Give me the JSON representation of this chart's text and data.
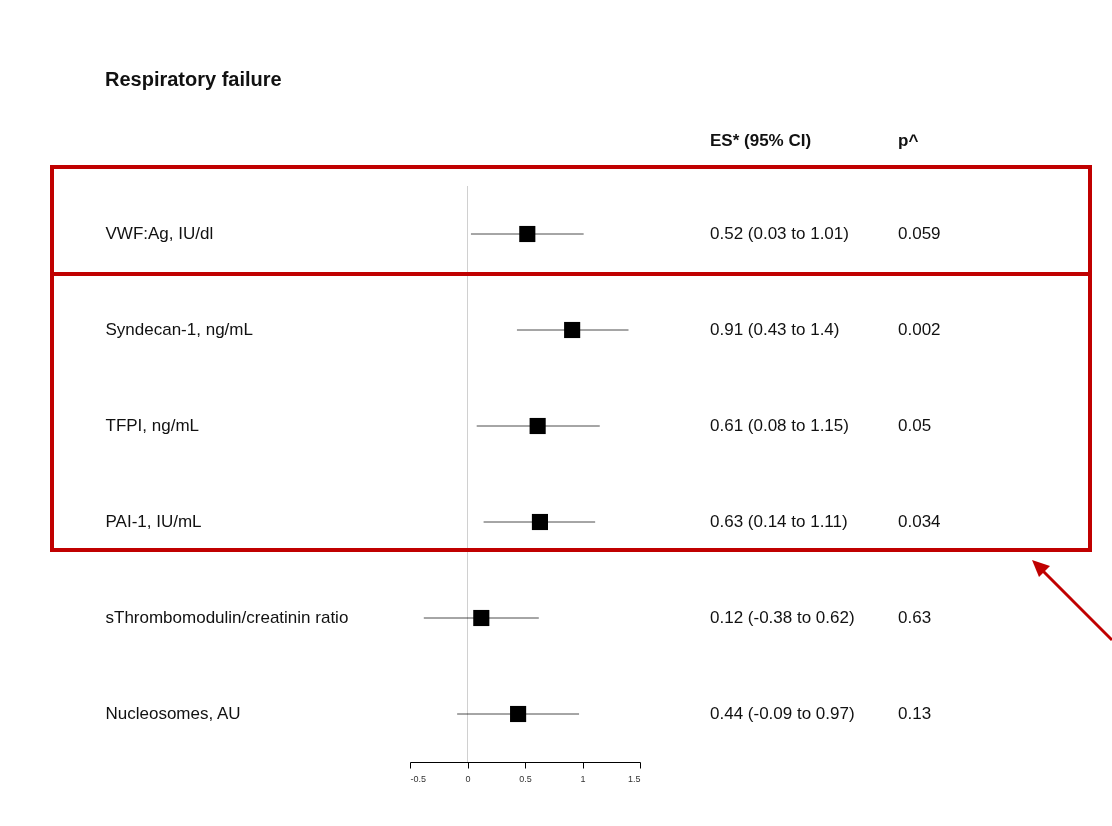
{
  "chart_data": {
    "type": "scatter",
    "title": "Respiratory failure",
    "orientation": "horizontal",
    "categories": [
      "VWF:Ag, IU/dl",
      "Syndecan-1, ng/mL",
      "TFPI, ng/mL",
      "PAI-1, IU/mL",
      "sThrombomodulin/creatinin ratio",
      "Nucleosomes, AU"
    ],
    "values": [
      0.52,
      0.91,
      0.61,
      0.63,
      0.12,
      0.44
    ],
    "errors": [
      [
        0.03,
        1.01
      ],
      [
        0.43,
        1.4
      ],
      [
        0.08,
        1.15
      ],
      [
        0.14,
        1.11
      ],
      [
        -0.38,
        0.62
      ],
      [
        -0.09,
        0.97
      ]
    ],
    "color": "#000000",
    "marker": "square",
    "grid": false,
    "xlim": [
      -0.5,
      1.5
    ],
    "xticks": [
      -0.5,
      0,
      0.5,
      1,
      1.5
    ],
    "ref_lines": [
      {
        "axis": "x",
        "value": 0,
        "color": "#d0d0d0"
      }
    ],
    "annotations": [
      "ES* (95% CI)",
      "p^",
      "0.52 (0.03 to 1.01)",
      "0.91 (0.43 to 1.4)",
      "0.61 (0.08 to 1.15)",
      "0.63 (0.14 to 1.11)",
      "0.12 (-0.38 to 0.62)",
      "0.44 (-0.09 to 0.97)",
      "0.059",
      "0.002",
      "0.05",
      "0.034",
      "0.63",
      "0.13"
    ]
  }
}
